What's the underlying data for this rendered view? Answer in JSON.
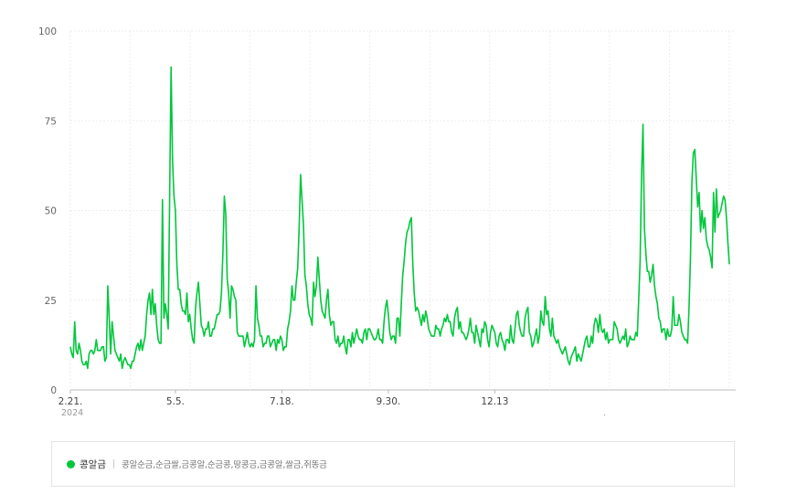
{
  "colors": {
    "series": "#00c73c",
    "grid": "#eeeeee",
    "axis": "#bbbbbb"
  },
  "chart_data": {
    "type": "line",
    "ylim": [
      0,
      100
    ],
    "yticks": [
      {
        "value": 0,
        "label": "0"
      },
      {
        "value": 25,
        "label": "25"
      },
      {
        "value": 50,
        "label": "50"
      },
      {
        "value": 75,
        "label": "75"
      },
      {
        "value": 100,
        "label": "100"
      }
    ],
    "xticks": [
      {
        "index": 0,
        "label": "2.21."
      },
      {
        "index": 73,
        "label": "5.5."
      },
      {
        "index": 147,
        "label": "7.18."
      },
      {
        "index": 221,
        "label": "9.30."
      },
      {
        "index": 295,
        "label": "12.13"
      }
    ],
    "year_label": "2024",
    "second_year_label": ".",
    "series": [
      {
        "name": "콩알금",
        "values": [
          12,
          10,
          9,
          19,
          11,
          10,
          13,
          11,
          8,
          7,
          7,
          8,
          6,
          10,
          11,
          11,
          10,
          11,
          14,
          11,
          11,
          11,
          12,
          12,
          8,
          9,
          29,
          20,
          10,
          19,
          15,
          11,
          10,
          9,
          8,
          10,
          6,
          8,
          9,
          8,
          7,
          7,
          6,
          8,
          8,
          10,
          12,
          13,
          11,
          14,
          11,
          13,
          15,
          21,
          25,
          27,
          21,
          28,
          21,
          24,
          18,
          14,
          13,
          13,
          53,
          20,
          24,
          21,
          17,
          54,
          90,
          64,
          54,
          50,
          35,
          28,
          28,
          24,
          22,
          22,
          21,
          27,
          19,
          21,
          17,
          14,
          13,
          23,
          27,
          30,
          24,
          18,
          17,
          15,
          17,
          17,
          19,
          15,
          15,
          17,
          17,
          19,
          21,
          21,
          22,
          27,
          38,
          54,
          49,
          31,
          27,
          20,
          29,
          28,
          26,
          25,
          16,
          15,
          15,
          15,
          15,
          12,
          14,
          16,
          13,
          12,
          13,
          12,
          14,
          29,
          20,
          18,
          15,
          15,
          12,
          13,
          13,
          15,
          15,
          12,
          13,
          14,
          14,
          11,
          14,
          13,
          15,
          14,
          11,
          12,
          12,
          17,
          19,
          22,
          29,
          25,
          25,
          30,
          34,
          45,
          60,
          53,
          46,
          32,
          29,
          24,
          21,
          20,
          18,
          30,
          26,
          29,
          37,
          31,
          25,
          22,
          21,
          20,
          25,
          28,
          21,
          18,
          19,
          19,
          14,
          13,
          15,
          12,
          13,
          13,
          15,
          12,
          10,
          14,
          14,
          12,
          16,
          13,
          15,
          17,
          15,
          14,
          14,
          13,
          16,
          17,
          14,
          17,
          17,
          16,
          15,
          14,
          14,
          15,
          17,
          14,
          14,
          13,
          19,
          23,
          25,
          21,
          16,
          14,
          15,
          15,
          13,
          20,
          20,
          15,
          24,
          32,
          36,
          41,
          44,
          45,
          47,
          48,
          35,
          27,
          22,
          23,
          22,
          20,
          18,
          21,
          19,
          22,
          20,
          17,
          16,
          15,
          15,
          15,
          18,
          17,
          17,
          15,
          17,
          18,
          20,
          19,
          21,
          19,
          19,
          16,
          15,
          20,
          22,
          23,
          17,
          19,
          16,
          16,
          15,
          14,
          15,
          17,
          20,
          16,
          16,
          13,
          18,
          16,
          14,
          12,
          17,
          16,
          19,
          18,
          14,
          12,
          16,
          18,
          17,
          16,
          13,
          12,
          15,
          16,
          14,
          13,
          11,
          14,
          14,
          13,
          18,
          14,
          13,
          17,
          21,
          22,
          18,
          16,
          15,
          15,
          20,
          22,
          23,
          16,
          15,
          12,
          13,
          15,
          17,
          13,
          15,
          22,
          19,
          18,
          26,
          21,
          22,
          17,
          15,
          20,
          15,
          14,
          13,
          14,
          12,
          11,
          10,
          11,
          12,
          10,
          8,
          7,
          9,
          10,
          11,
          12,
          8,
          10,
          9,
          8,
          10,
          12,
          14,
          15,
          12,
          12,
          15,
          13,
          18,
          20,
          19,
          16,
          21,
          17,
          16,
          17,
          14,
          16,
          13,
          14,
          14,
          14,
          19,
          18,
          17,
          14,
          13,
          14,
          15,
          14,
          17,
          12,
          13,
          15,
          14,
          14,
          14,
          16,
          15,
          25,
          36,
          60,
          74,
          45,
          38,
          33,
          33,
          30,
          32,
          35,
          29,
          26,
          24,
          20,
          19,
          16,
          17,
          17,
          14,
          17,
          15,
          15,
          17,
          26,
          18,
          18,
          18,
          21,
          19,
          16,
          15,
          14,
          14,
          13,
          23,
          37,
          58,
          66,
          67,
          59,
          51,
          55,
          44,
          50,
          45,
          48,
          42,
          40,
          39,
          37,
          34,
          55,
          44,
          56,
          48,
          49,
          50,
          52,
          54,
          53,
          48,
          41,
          35
        ]
      }
    ]
  },
  "legend": {
    "series_name": "콩알금",
    "keywords": "콩알순금,순금쌀,금콩알,순금콩,땅콩금,금콩알,쌀금,쥐똥금"
  }
}
